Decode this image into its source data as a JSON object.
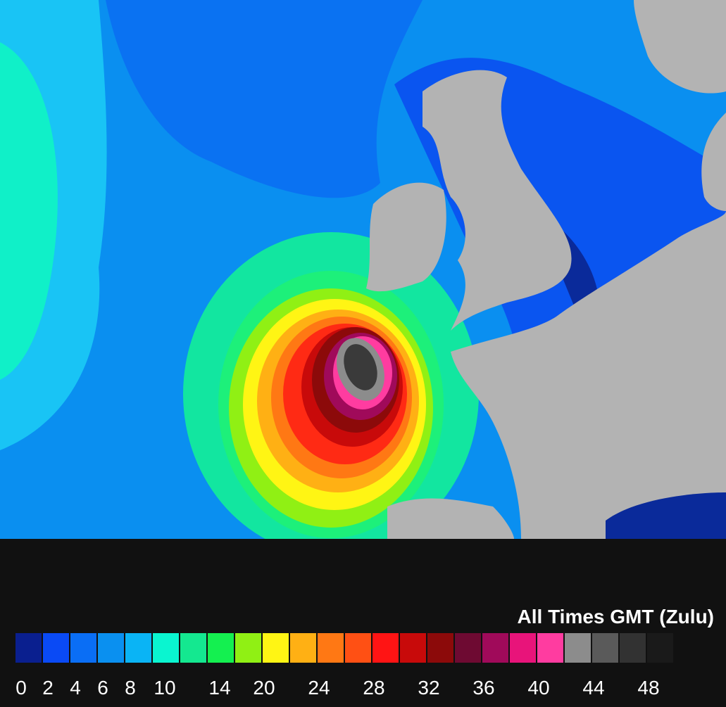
{
  "legend": {
    "title": "All Times GMT (Zulu)",
    "labels": [
      0,
      2,
      4,
      6,
      8,
      10,
      14,
      20,
      24,
      28,
      32,
      36,
      40,
      44,
      48
    ]
  }
}
